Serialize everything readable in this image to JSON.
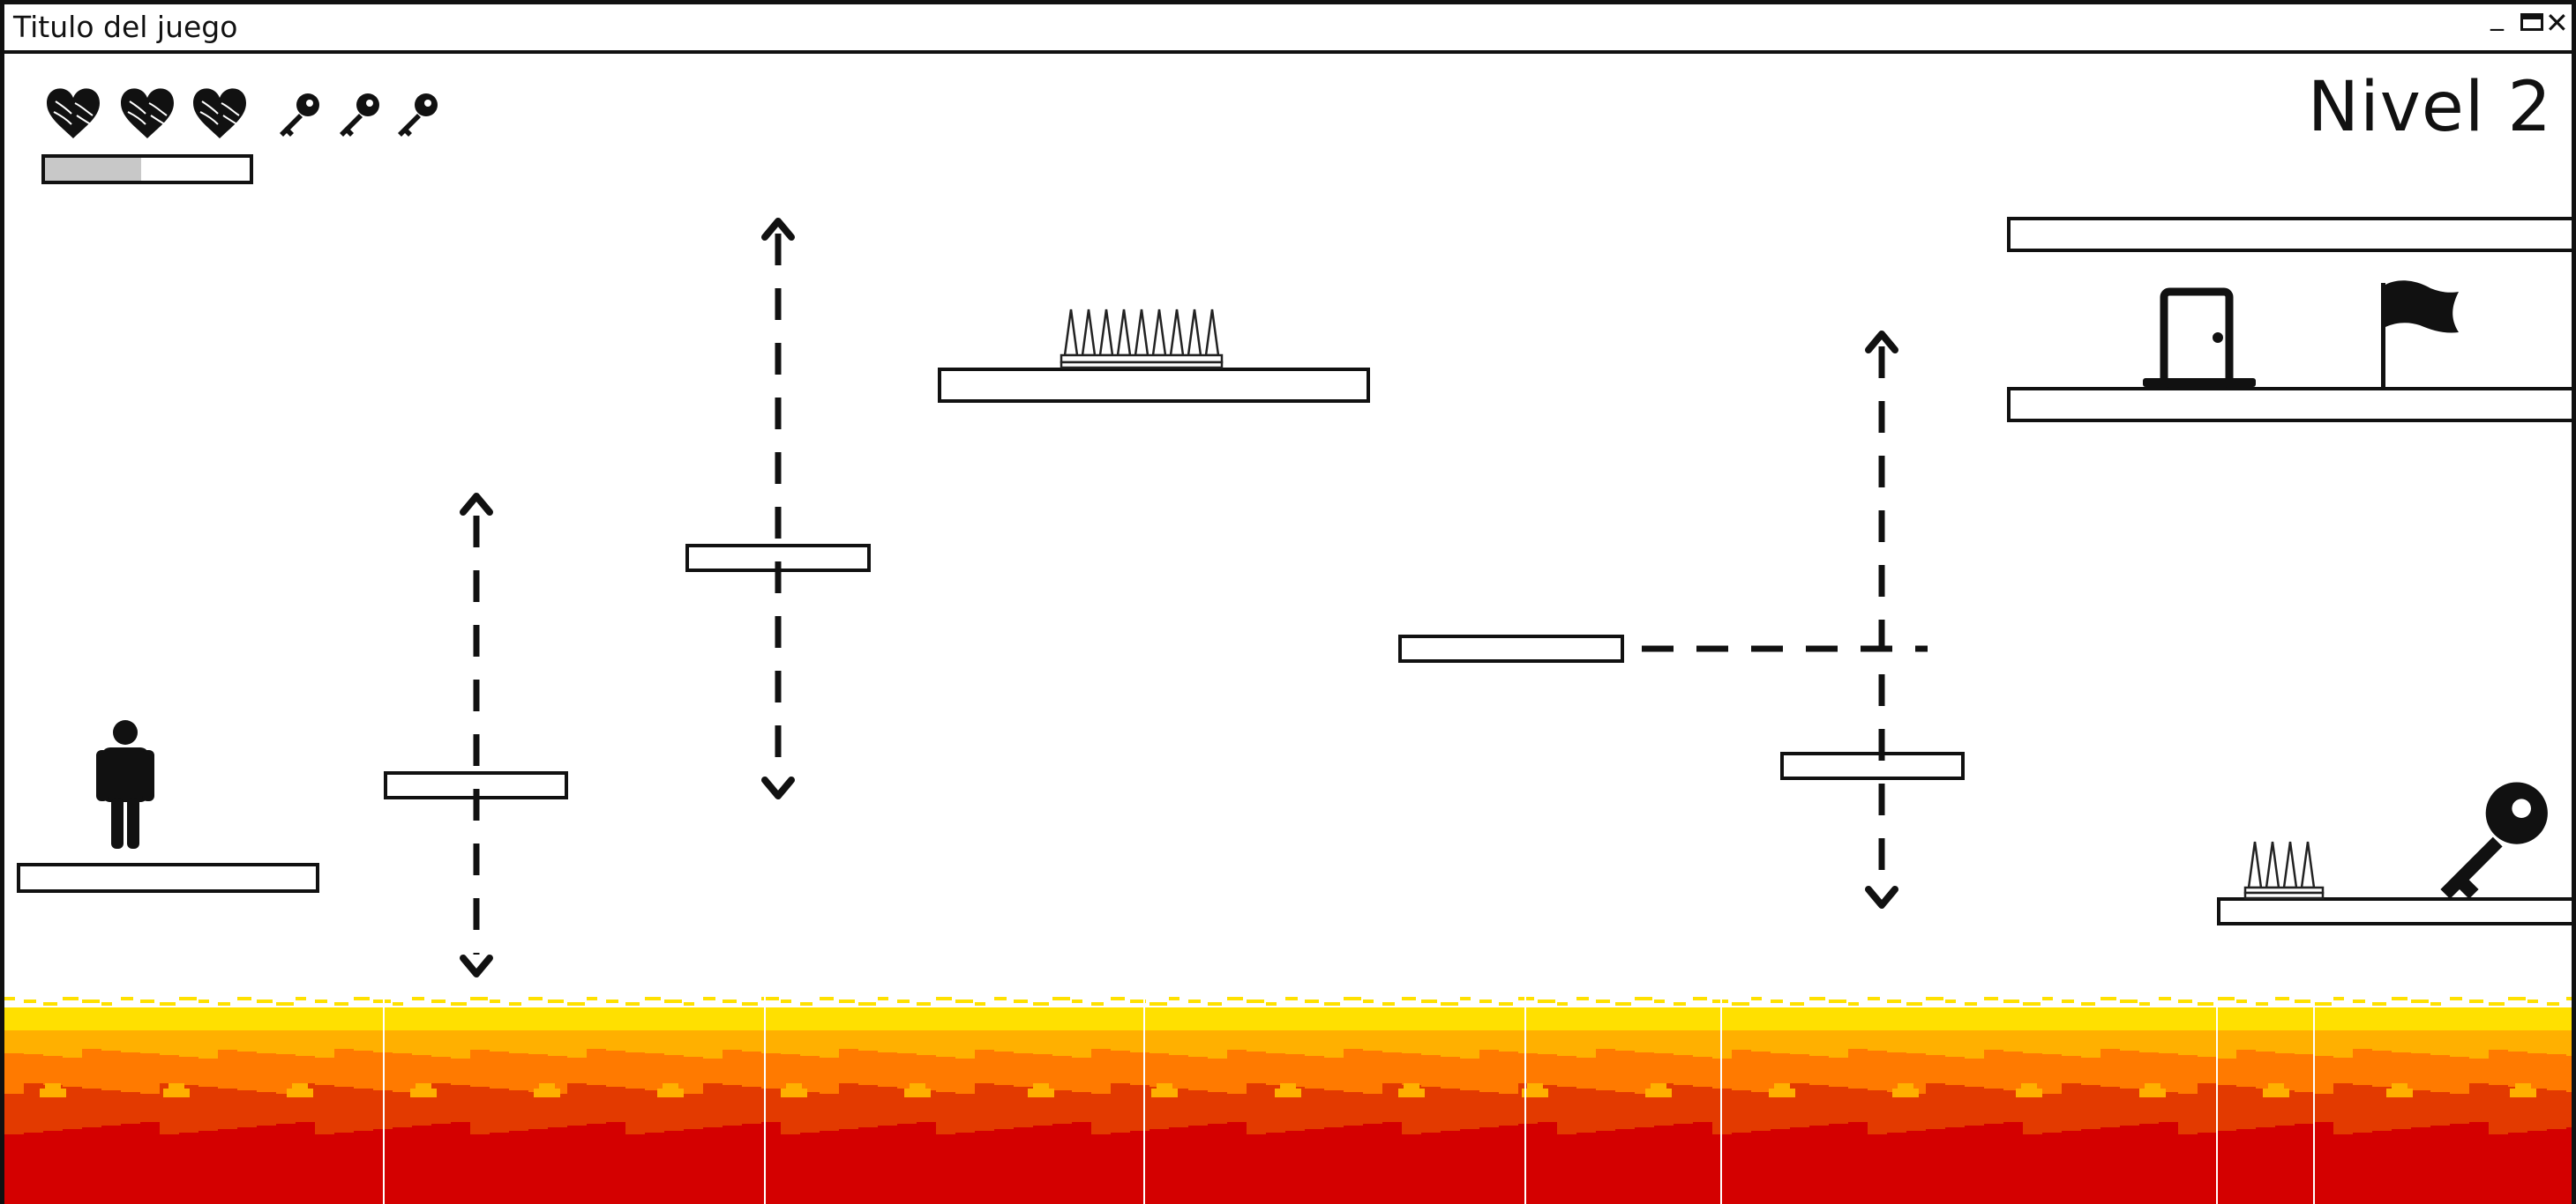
{
  "window": {
    "title": "Titulo del juego",
    "controls": {
      "minimize": "_",
      "close": "✕"
    }
  },
  "hud": {
    "hearts": 3,
    "keys": 3,
    "progress": 0.47,
    "level_label": "Nivel 2"
  },
  "icons": {
    "heart": "heart-icon",
    "key": "key-icon",
    "player": "person-icon",
    "door": "door-icon",
    "flag": "flag-icon",
    "spikes": "spikes-icon"
  },
  "colors": {
    "ink": "#111111",
    "lava_top": "#ffe000",
    "lava_light": "#ffb000",
    "lava_mid": "#ff7a00",
    "lava_dark": "#e33a00",
    "lava_deep": "#d40000"
  }
}
